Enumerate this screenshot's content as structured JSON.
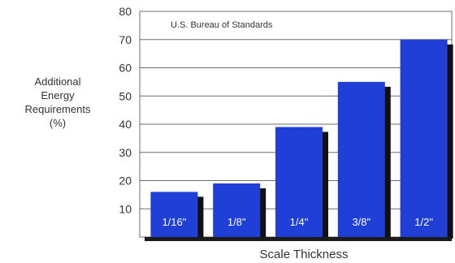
{
  "chart_data": {
    "type": "bar",
    "annotation": "U.S. Bureau of Standards",
    "ylabel_lines": [
      "Additional",
      "Energy",
      "Requirements",
      "(%)"
    ],
    "xlabel": "Scale Thickness",
    "ylim": [
      0,
      80
    ],
    "yticks": [
      10,
      20,
      30,
      40,
      50,
      60,
      70,
      80
    ],
    "grid": true,
    "categories": [
      "1/16\"",
      "1/8\"",
      "1/4\"",
      "3/8\"",
      "1/2\""
    ],
    "values": [
      16,
      19,
      39,
      55,
      70
    ],
    "colors": {
      "bar": "#1f3fd6",
      "bar_shadow": "#111111",
      "grid": "#6e6e6e",
      "text": "#333333",
      "bar_text": "#ffffff"
    }
  }
}
